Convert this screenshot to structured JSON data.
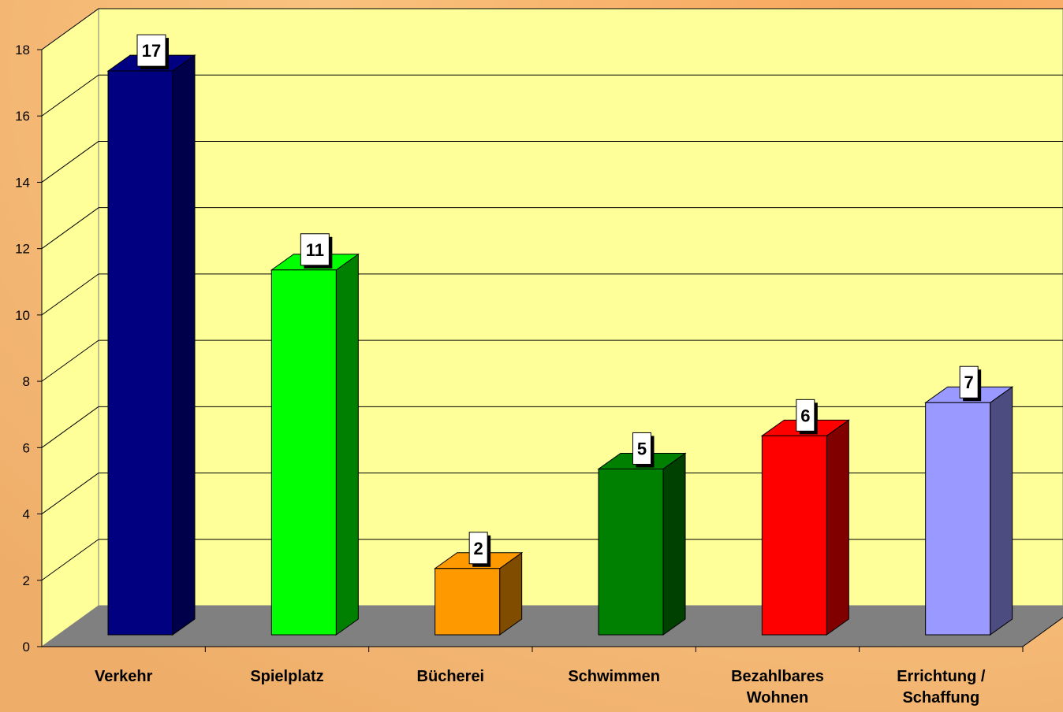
{
  "chart_data": {
    "type": "bar",
    "categories": [
      "Verkehr",
      "Spielplatz",
      "Bücherei",
      "Schwimmen",
      "Bezahlbares Wohnen",
      "Errichtung / Schaffung"
    ],
    "values": [
      17,
      11,
      2,
      5,
      6,
      7
    ],
    "colors": [
      "#000080",
      "#00ff00",
      "#ff9900",
      "#008000",
      "#ff0000",
      "#9999ff"
    ],
    "side_colors": [
      "#00004a",
      "#008000",
      "#7f4c00",
      "#004000",
      "#800000",
      "#4c4c80"
    ],
    "ylim": [
      0,
      18
    ],
    "yticks": [
      0,
      2,
      4,
      6,
      8,
      10,
      12,
      14,
      16,
      18
    ],
    "grid": true
  }
}
